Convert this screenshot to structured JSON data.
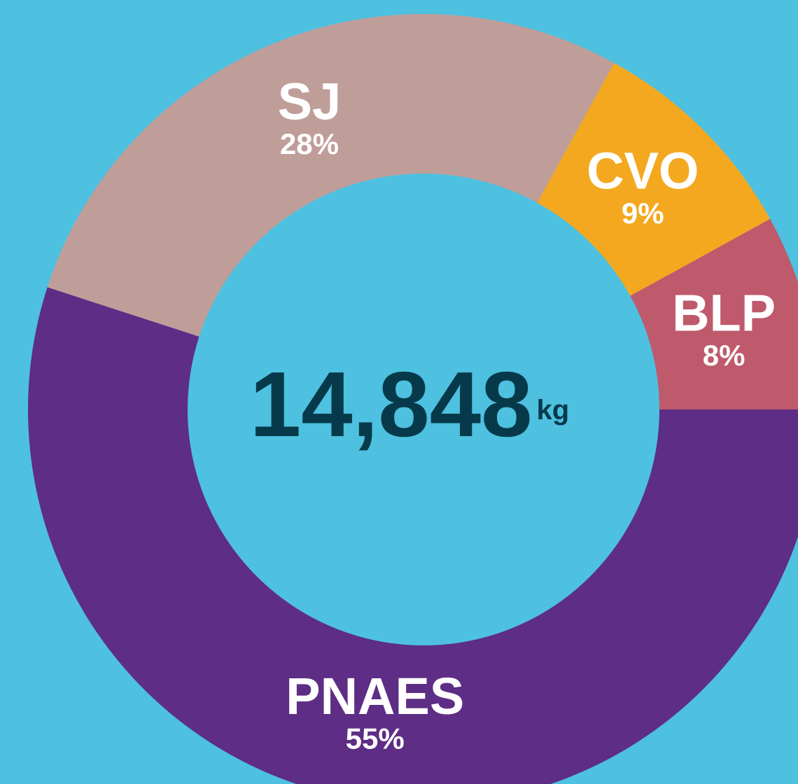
{
  "chart_data": {
    "type": "donut",
    "total": "14,848",
    "unit": "kg",
    "categories": [
      "BLP",
      "CVO",
      "SJ",
      "PNAES"
    ],
    "values": [
      8,
      9,
      28,
      55
    ],
    "value_labels": [
      "8%",
      "9%",
      "28%",
      "55%"
    ],
    "colors": [
      "#be5a6c",
      "#f4a81f",
      "#bf9e9a",
      "#5e2d85"
    ]
  }
}
